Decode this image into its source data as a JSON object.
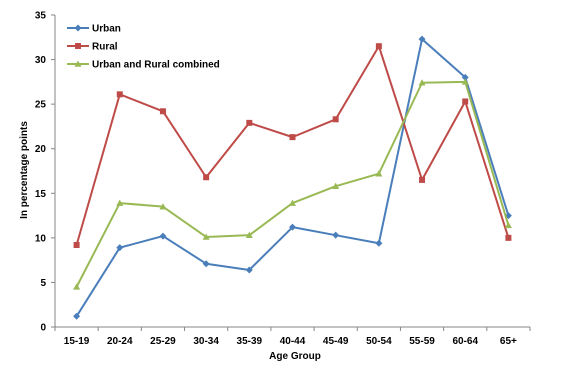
{
  "chart_data": {
    "type": "line",
    "xlabel": "Age Group",
    "ylabel": "In percentage points",
    "ylim": [
      0,
      35
    ],
    "yticks": [
      0,
      5,
      10,
      15,
      20,
      25,
      30,
      35
    ],
    "grid": false,
    "legend_position": "top-left",
    "categories": [
      "15-19",
      "20-24",
      "25-29",
      "30-34",
      "35-39",
      "40-44",
      "45-49",
      "50-54",
      "55-59",
      "60-64",
      "65+"
    ],
    "series": [
      {
        "name": "Urban",
        "color": "#4a7ebb",
        "marker": "diamond",
        "values": [
          1.2,
          8.9,
          10.2,
          7.1,
          6.4,
          11.2,
          10.3,
          9.4,
          32.3,
          28.0,
          12.5
        ]
      },
      {
        "name": "Rural",
        "color": "#be4b48",
        "marker": "square",
        "values": [
          9.2,
          26.1,
          24.2,
          16.8,
          22.9,
          21.3,
          23.3,
          31.5,
          16.5,
          25.3,
          10.0
        ]
      },
      {
        "name": "Urban and Rural combined",
        "color": "#98b954",
        "marker": "triangle",
        "values": [
          4.5,
          13.9,
          13.5,
          10.1,
          10.3,
          13.9,
          15.8,
          17.2,
          27.4,
          27.5,
          11.4
        ]
      }
    ]
  }
}
